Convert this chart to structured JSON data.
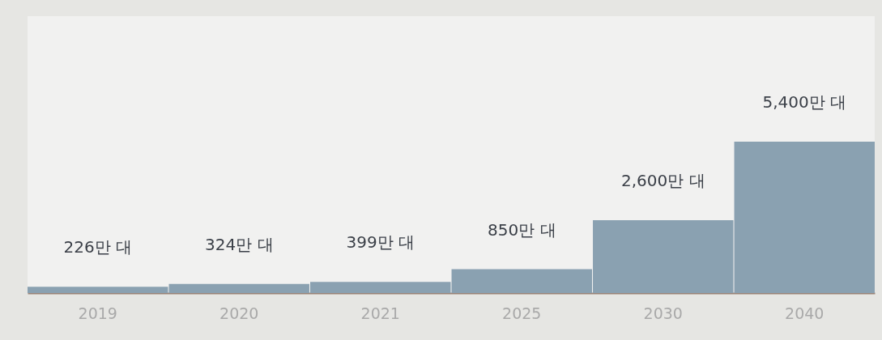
{
  "chart_data": {
    "type": "bar",
    "categories": [
      "2019",
      "2020",
      "2021",
      "2025",
      "2030",
      "2040"
    ],
    "values": [
      226,
      324,
      399,
      850,
      2600,
      5400
    ],
    "color": "#8aa1b1",
    "value_labels": [
      "226만 대",
      "324만 대",
      "399만 대",
      "850만 대",
      "2,600만 대",
      "5,400만 대"
    ]
  }
}
